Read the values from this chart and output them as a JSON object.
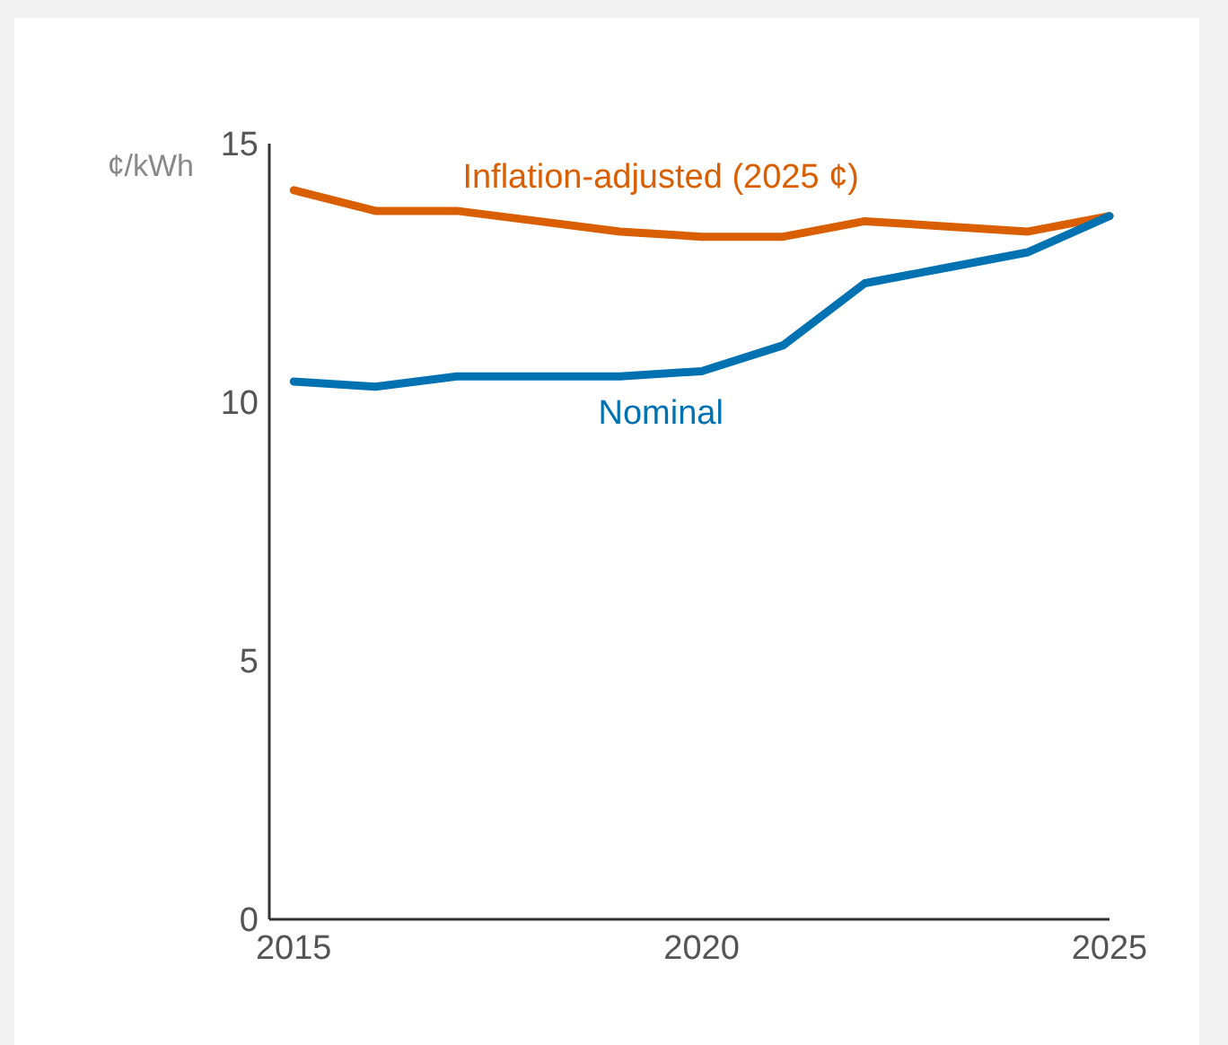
{
  "chart_data": {
    "type": "line",
    "ylabel": "¢/kWh",
    "x": [
      2015,
      2016,
      2017,
      2018,
      2019,
      2020,
      2021,
      2022,
      2023,
      2024,
      2025
    ],
    "series": [
      {
        "name": "Inflation-adjusted (2025 ¢)",
        "color": "#d95f02",
        "values": [
          14.1,
          13.7,
          13.7,
          13.5,
          13.3,
          13.2,
          13.2,
          13.5,
          13.4,
          13.3,
          13.6
        ]
      },
      {
        "name": "Nominal",
        "color": "#0072b2",
        "values": [
          10.4,
          10.3,
          10.5,
          10.5,
          10.5,
          10.6,
          11.1,
          12.3,
          12.6,
          12.9,
          13.6
        ]
      }
    ],
    "xlim": [
      2014.7,
      2025
    ],
    "xticks": [
      2015,
      2020,
      2025
    ],
    "ylim": [
      0,
      15
    ],
    "yticks": [
      0,
      5,
      10,
      15
    ],
    "grid": false,
    "legend": false,
    "marker": "none",
    "line_style": "solid"
  }
}
